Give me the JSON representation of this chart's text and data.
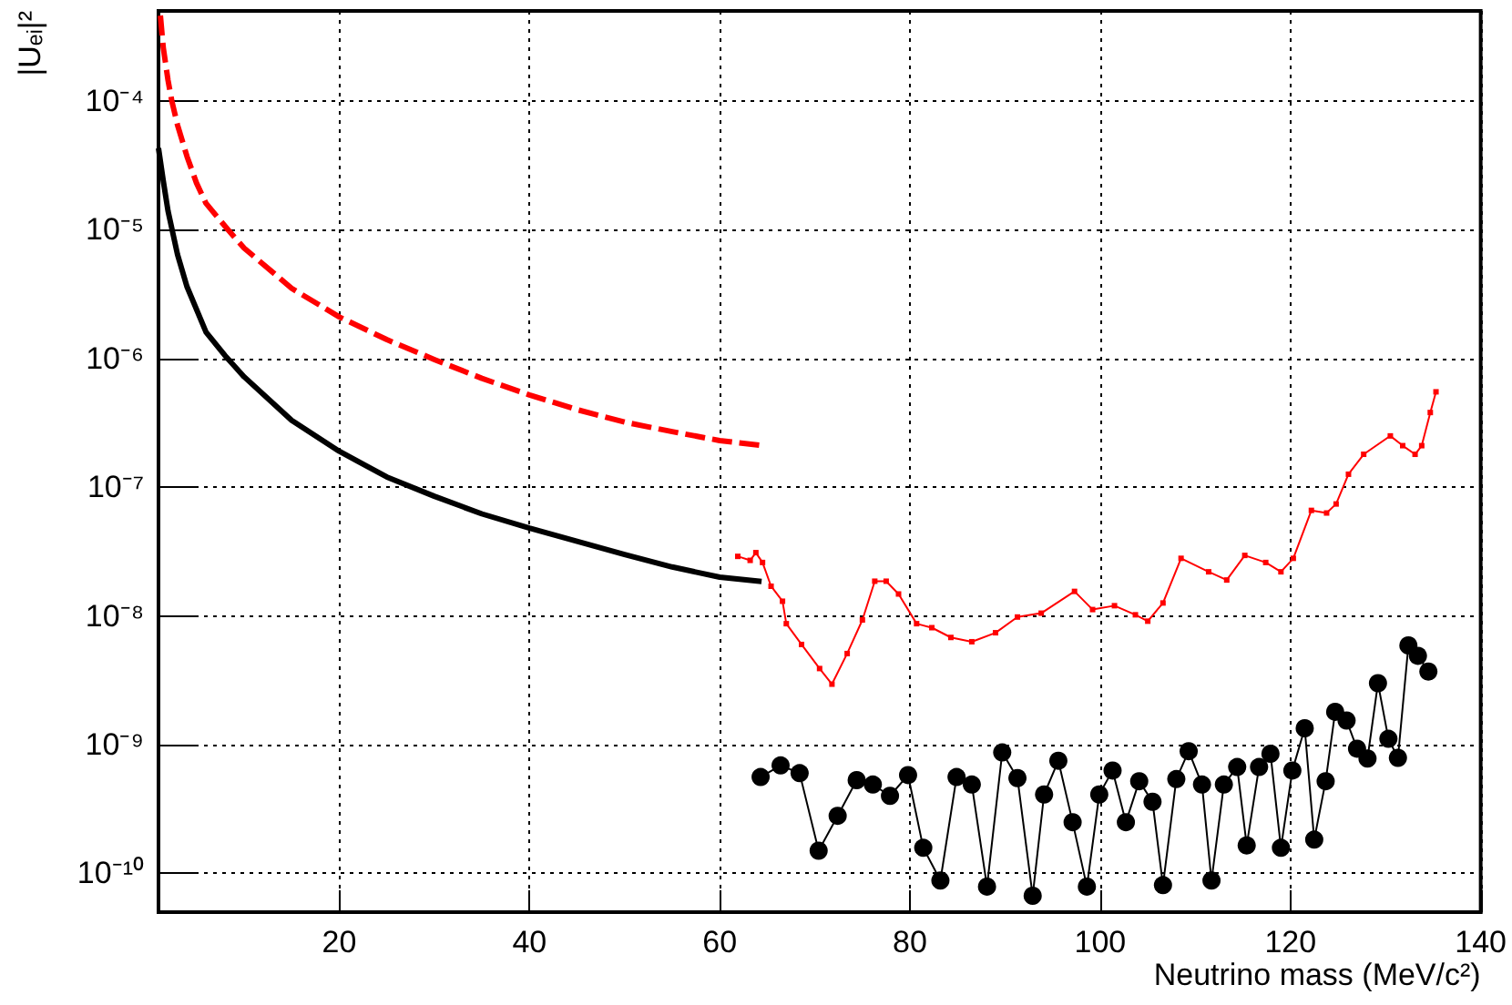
{
  "chart_data": {
    "type": "line",
    "xlabel": "Neutrino mass (MeV/c²)",
    "ylabel": "|Uₑᵢ|²",
    "log": "y",
    "grid": true,
    "xlim": [
      1,
      140
    ],
    "xticks": [
      20,
      40,
      60,
      80,
      100,
      120,
      140
    ],
    "ylim": [
      5e-11,
      0.0005
    ],
    "yticks": [
      {
        "value": 1e-10,
        "label": "10⁻¹⁰"
      },
      {
        "value": 1e-09,
        "label": "10⁻⁹"
      },
      {
        "value": 1e-08,
        "label": "10⁻⁸"
      },
      {
        "value": 1e-07,
        "label": "10⁻⁷"
      },
      {
        "value": 1e-06,
        "label": "10⁻⁶"
      },
      {
        "value": 1e-05,
        "label": "10⁻⁵"
      },
      {
        "value": 0.0001,
        "label": "10⁻⁴"
      }
    ],
    "series": [
      {
        "color": "#000000",
        "line_style": "solid",
        "marker": "none",
        "x": [
          1,
          1.5,
          2,
          3,
          4,
          6,
          8,
          10,
          15,
          20,
          25,
          30,
          35,
          40,
          45,
          50,
          55,
          60,
          64.4
        ],
        "values": [
          4.3e-05,
          2.4e-05,
          1.4e-05,
          6.4e-06,
          3.6e-06,
          1.6e-06,
          1.05e-06,
          7.2e-07,
          3.3e-07,
          1.9e-07,
          1.2e-07,
          8.5e-08,
          6.2e-08,
          4.8e-08,
          3.8e-08,
          3e-08,
          2.4e-08,
          2e-08,
          1.85e-08
        ]
      },
      {
        "color": "#ff0000",
        "line_style": "dashed",
        "marker": "none",
        "x": [
          1.2,
          1.5,
          2,
          2.4,
          3,
          4,
          5,
          6,
          8.3,
          10,
          15,
          20,
          25,
          30,
          35,
          40,
          45,
          50,
          55,
          60,
          64.6
        ],
        "values": [
          0.00046,
          0.00026,
          0.000145,
          0.0001,
          6.5e-05,
          3.7e-05,
          2.3e-05,
          1.6e-05,
          1e-05,
          7.2e-06,
          3.5e-06,
          2.1e-06,
          1.4e-06,
          9.8e-07,
          7e-07,
          5.2e-07,
          4e-07,
          3.2e-07,
          2.7e-07,
          2.3e-07,
          2.1e-07
        ]
      },
      {
        "color": "#ff0000",
        "line_style": "solid",
        "marker": "square",
        "x": [
          61.9,
          63.2,
          63.8,
          64.5,
          65.4,
          66.6,
          67.0,
          68.6,
          70.5,
          71.8,
          73.4,
          75.0,
          76.3,
          77.5,
          78.8,
          80.7,
          82.3,
          84.3,
          86.5,
          89.0,
          91.3,
          93.8,
          97.3,
          99.2,
          101.5,
          103.7,
          105.0,
          106.6,
          108.5,
          111.4,
          113.3,
          115.2,
          117.4,
          119.0,
          120.3,
          122.2,
          123.8,
          124.8,
          126.1,
          127.7,
          130.5,
          131.8,
          133.1,
          133.8,
          134.7,
          135.3
        ],
        "values": [
          2.9e-08,
          2.7e-08,
          3.1e-08,
          2.6e-08,
          1.7e-08,
          1.3e-08,
          8.7e-09,
          6e-09,
          3.9e-09,
          2.95e-09,
          5.1e-09,
          9.3e-09,
          1.86e-08,
          1.86e-08,
          1.48e-08,
          8.7e-09,
          8.1e-09,
          6.8e-09,
          6.3e-09,
          7.4e-09,
          9.8e-09,
          1.05e-08,
          1.55e-08,
          1.12e-08,
          1.2e-08,
          1.02e-08,
          9.1e-09,
          1.26e-08,
          2.8e-08,
          2.2e-08,
          1.9e-08,
          2.95e-08,
          2.6e-08,
          2.2e-08,
          2.8e-08,
          6.6e-08,
          6.3e-08,
          7.4e-08,
          1.26e-07,
          1.8e-07,
          2.5e-07,
          2.1e-07,
          1.8e-07,
          2.1e-07,
          3.8e-07,
          5.5e-07
        ]
      },
      {
        "color": "#000000",
        "line_style": "solid",
        "marker": "circle",
        "x": [
          64.3,
          66.4,
          68.4,
          70.4,
          72.4,
          74.4,
          76.1,
          77.9,
          79.8,
          81.4,
          83.2,
          84.9,
          86.5,
          88.1,
          89.7,
          91.3,
          92.9,
          94.1,
          95.6,
          97.1,
          98.6,
          99.9,
          101.3,
          102.7,
          104.1,
          105.5,
          106.6,
          108.0,
          109.3,
          110.7,
          111.7,
          113.0,
          114.4,
          115.4,
          116.7,
          117.9,
          119.0,
          120.2,
          121.5,
          122.5,
          123.7,
          124.7,
          125.9,
          127.0,
          128.1,
          129.2,
          130.3,
          131.3,
          132.4,
          133.4,
          134.5
        ],
        "values": [
          5.6e-10,
          6.9e-10,
          6e-10,
          1.5e-10,
          2.8e-10,
          5.3e-10,
          4.9e-10,
          4e-10,
          5.8e-10,
          1.58e-10,
          8.8e-11,
          5.6e-10,
          4.9e-10,
          7.9e-11,
          8.7e-10,
          5.5e-10,
          6.7e-11,
          4.1e-10,
          7.5e-10,
          2.5e-10,
          7.9e-11,
          4.1e-10,
          6.3e-10,
          2.5e-10,
          5.2e-10,
          3.6e-10,
          8.1e-11,
          5.4e-10,
          8.9e-10,
          4.9e-10,
          8.8e-11,
          4.9e-10,
          6.7e-10,
          1.65e-10,
          6.7e-10,
          8.5e-10,
          1.58e-10,
          6.3e-10,
          1.34e-09,
          1.83e-10,
          5.2e-10,
          1.8e-09,
          1.54e-09,
          9.3e-10,
          7.8e-10,
          3e-09,
          1.11e-09,
          7.9e-10,
          5.9e-09,
          4.9e-09,
          3.7e-09
        ]
      }
    ]
  }
}
